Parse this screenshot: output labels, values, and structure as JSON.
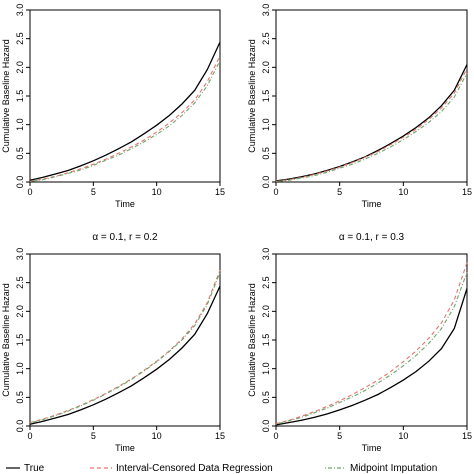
{
  "legend": {
    "entries": [
      {
        "label": "True",
        "color": "#000000",
        "dash": "solid"
      },
      {
        "label": "Interval-Censored Data Regression",
        "color": "#e8736b",
        "dash": "dashed"
      },
      {
        "label": "Midpoint Imputation",
        "color": "#6aa66a",
        "dash": "dotdash"
      }
    ],
    "placement": "bottom"
  },
  "chart_data": [
    {
      "type": "line",
      "title": "",
      "xlabel": "Time",
      "ylabel": "Cumulative Baseline Hazard",
      "xlim": [
        0,
        15
      ],
      "ylim": [
        0,
        3
      ],
      "xticks": [
        0,
        5,
        10,
        15
      ],
      "yticks": [
        0.0,
        0.5,
        1.0,
        1.5,
        2.0,
        2.5,
        3.0
      ],
      "x": [
        0,
        1,
        2,
        3,
        4,
        5,
        6,
        7,
        8,
        9,
        10,
        11,
        12,
        13,
        14,
        15
      ],
      "series": [
        {
          "name": "True",
          "values": [
            0.03,
            0.08,
            0.14,
            0.2,
            0.28,
            0.37,
            0.47,
            0.58,
            0.7,
            0.84,
            0.99,
            1.16,
            1.36,
            1.6,
            1.96,
            2.44
          ]
        },
        {
          "name": "Interval-Censored Data Regression",
          "values": [
            0.01,
            0.05,
            0.1,
            0.16,
            0.23,
            0.31,
            0.4,
            0.5,
            0.61,
            0.73,
            0.87,
            1.03,
            1.21,
            1.43,
            1.75,
            2.2
          ]
        },
        {
          "name": "Midpoint Imputation",
          "values": [
            0.01,
            0.04,
            0.09,
            0.15,
            0.21,
            0.29,
            0.38,
            0.47,
            0.58,
            0.7,
            0.83,
            0.98,
            1.16,
            1.38,
            1.68,
            2.12
          ]
        }
      ]
    },
    {
      "type": "line",
      "title": "",
      "xlabel": "Time",
      "ylabel": "Cumulative Baseline Hazard",
      "xlim": [
        0,
        15
      ],
      "ylim": [
        0,
        3
      ],
      "xticks": [
        0,
        5,
        10,
        15
      ],
      "yticks": [
        0.0,
        0.5,
        1.0,
        1.5,
        2.0,
        2.5,
        3.0
      ],
      "x": [
        0,
        1,
        2,
        3,
        4,
        5,
        6,
        7,
        8,
        9,
        10,
        11,
        12,
        13,
        14,
        15
      ],
      "series": [
        {
          "name": "True",
          "values": [
            0.02,
            0.05,
            0.09,
            0.14,
            0.2,
            0.27,
            0.35,
            0.44,
            0.55,
            0.67,
            0.8,
            0.95,
            1.12,
            1.33,
            1.6,
            2.05
          ]
        },
        {
          "name": "Interval-Censored Data Regression",
          "values": [
            0.01,
            0.04,
            0.08,
            0.13,
            0.19,
            0.26,
            0.34,
            0.43,
            0.53,
            0.65,
            0.78,
            0.92,
            1.09,
            1.29,
            1.55,
            1.98
          ]
        },
        {
          "name": "Midpoint Imputation",
          "values": [
            0.01,
            0.03,
            0.07,
            0.11,
            0.17,
            0.24,
            0.31,
            0.4,
            0.5,
            0.61,
            0.74,
            0.88,
            1.04,
            1.23,
            1.48,
            1.9
          ]
        }
      ]
    },
    {
      "type": "line",
      "title": "α = 0.1, r = 0.2",
      "xlabel": "Time",
      "ylabel": "Cumulative Baseline Hazard",
      "xlim": [
        0,
        15
      ],
      "ylim": [
        0,
        3
      ],
      "xticks": [
        0,
        5,
        10,
        15
      ],
      "yticks": [
        0.0,
        0.5,
        1.0,
        1.5,
        2.0,
        2.5,
        3.0
      ],
      "x": [
        0,
        1,
        2,
        3,
        4,
        5,
        6,
        7,
        8,
        9,
        10,
        11,
        12,
        13,
        14,
        15
      ],
      "series": [
        {
          "name": "True",
          "values": [
            0.03,
            0.08,
            0.14,
            0.2,
            0.28,
            0.37,
            0.47,
            0.58,
            0.7,
            0.84,
            0.99,
            1.16,
            1.36,
            1.6,
            1.96,
            2.44
          ]
        },
        {
          "name": "Interval-Censored Data Regression",
          "values": [
            0.06,
            0.12,
            0.19,
            0.27,
            0.36,
            0.46,
            0.57,
            0.69,
            0.82,
            0.97,
            1.13,
            1.31,
            1.52,
            1.78,
            2.15,
            2.72
          ]
        },
        {
          "name": "Midpoint Imputation",
          "values": [
            0.05,
            0.11,
            0.18,
            0.26,
            0.35,
            0.45,
            0.56,
            0.68,
            0.81,
            0.96,
            1.12,
            1.3,
            1.5,
            1.75,
            2.12,
            2.68
          ]
        }
      ]
    },
    {
      "type": "line",
      "title": "α = 0.1, r = 0.3",
      "xlabel": "Time",
      "ylabel": "Cumulative Baseline Hazard",
      "xlim": [
        0,
        15
      ],
      "ylim": [
        0,
        3
      ],
      "xticks": [
        0,
        5,
        10,
        15
      ],
      "yticks": [
        0.0,
        0.5,
        1.0,
        1.5,
        2.0,
        2.5,
        3.0
      ],
      "x": [
        0,
        1,
        2,
        3,
        4,
        5,
        6,
        7,
        8,
        9,
        10,
        11,
        12,
        13,
        14,
        15
      ],
      "series": [
        {
          "name": "True",
          "values": [
            0.02,
            0.06,
            0.1,
            0.15,
            0.21,
            0.28,
            0.36,
            0.45,
            0.55,
            0.67,
            0.8,
            0.95,
            1.13,
            1.35,
            1.7,
            2.4
          ]
        },
        {
          "name": "Interval-Censored Data Regression",
          "values": [
            0.04,
            0.1,
            0.17,
            0.25,
            0.34,
            0.44,
            0.55,
            0.67,
            0.8,
            0.95,
            1.12,
            1.31,
            1.53,
            1.8,
            2.2,
            2.85
          ]
        },
        {
          "name": "Midpoint Imputation",
          "values": [
            0.03,
            0.09,
            0.15,
            0.23,
            0.31,
            0.41,
            0.51,
            0.62,
            0.75,
            0.89,
            1.05,
            1.23,
            1.44,
            1.7,
            2.08,
            2.68
          ]
        }
      ]
    }
  ]
}
